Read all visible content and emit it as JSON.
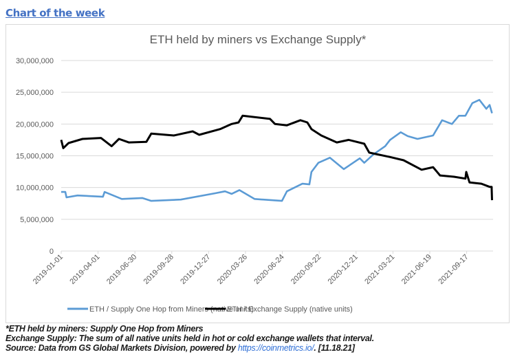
{
  "heading": "Chart of the week",
  "notes": {
    "line1": "*ETH held by miners: Supply One Hop from Miners",
    "line2": "Exchange Supply: The sum of all native units held in hot or cold exchange wallets that interval.",
    "line3_prefix": "Source: Data from GS Global Markets Division, powered by ",
    "line3_link": "https://coinmetrics.io/",
    "line3_suffix": ". [11.18.21]"
  },
  "chart_data": {
    "type": "line",
    "title": "ETH held by miners vs Exchange Supply*",
    "xlabel": "",
    "ylabel": "",
    "ylim": [
      0,
      30000000
    ],
    "xlim": [
      "2019-01-01",
      "2021-11-18"
    ],
    "y_ticks": [
      "0",
      "5,000,000",
      "10,000,000",
      "15,000,000",
      "20,000,000",
      "25,000,000",
      "30,000,000"
    ],
    "x_ticks": [
      "2019-01-01",
      "2019-04-01",
      "2019-06-30",
      "2019-09-28",
      "2019-12-27",
      "2020-03-26",
      "2020-06-24",
      "2020-09-22",
      "2020-12-21",
      "2021-03-21",
      "2021-06-19",
      "2021-09-17"
    ],
    "grid": true,
    "legend_position": "bottom",
    "series": [
      {
        "name": "ETH / Supply One Hop from Miners (native units)",
        "color": "#5b9bd5",
        "points": [
          [
            "2019-01-01",
            9300000
          ],
          [
            "2019-01-11",
            9300000
          ],
          [
            "2019-01-14",
            8450000
          ],
          [
            "2019-02-10",
            8750000
          ],
          [
            "2019-04-13",
            8550000
          ],
          [
            "2019-04-17",
            9300000
          ],
          [
            "2019-05-29",
            8200000
          ],
          [
            "2019-07-18",
            8350000
          ],
          [
            "2019-08-09",
            7900000
          ],
          [
            "2019-10-20",
            8100000
          ],
          [
            "2020-01-12",
            9100000
          ],
          [
            "2020-02-05",
            9400000
          ],
          [
            "2020-02-21",
            9000000
          ],
          [
            "2020-03-11",
            9600000
          ],
          [
            "2020-04-17",
            8200000
          ],
          [
            "2020-06-23",
            7900000
          ],
          [
            "2020-07-05",
            9400000
          ],
          [
            "2020-08-12",
            10600000
          ],
          [
            "2020-08-29",
            10500000
          ],
          [
            "2020-09-03",
            12450000
          ],
          [
            "2020-09-20",
            13900000
          ],
          [
            "2020-10-18",
            14700000
          ],
          [
            "2020-11-21",
            12900000
          ],
          [
            "2020-12-30",
            14600000
          ],
          [
            "2021-01-10",
            13900000
          ],
          [
            "2021-02-01",
            15200000
          ],
          [
            "2021-03-02",
            16500000
          ],
          [
            "2021-03-14",
            17500000
          ],
          [
            "2021-04-09",
            18700000
          ],
          [
            "2021-04-26",
            18100000
          ],
          [
            "2021-05-20",
            17650000
          ],
          [
            "2021-06-27",
            18200000
          ],
          [
            "2021-07-19",
            20600000
          ],
          [
            "2021-08-12",
            20000000
          ],
          [
            "2021-08-29",
            21300000
          ],
          [
            "2021-09-14",
            21300000
          ],
          [
            "2021-10-01",
            23300000
          ],
          [
            "2021-10-18",
            23800000
          ],
          [
            "2021-11-04",
            22400000
          ],
          [
            "2021-11-12",
            23000000
          ],
          [
            "2021-11-18",
            21700000
          ]
        ]
      },
      {
        "name": "ETH / Exchange Supply (native units)",
        "color": "#000000",
        "points": [
          [
            "2019-01-01",
            17500000
          ],
          [
            "2019-01-06",
            16200000
          ],
          [
            "2019-01-19",
            17000000
          ],
          [
            "2019-02-22",
            17650000
          ],
          [
            "2019-04-08",
            17800000
          ],
          [
            "2019-05-04",
            16500000
          ],
          [
            "2019-05-22",
            17650000
          ],
          [
            "2019-06-15",
            17100000
          ],
          [
            "2019-07-28",
            17200000
          ],
          [
            "2019-08-09",
            18500000
          ],
          [
            "2019-10-03",
            18200000
          ],
          [
            "2019-11-18",
            18850000
          ],
          [
            "2019-12-04",
            18300000
          ],
          [
            "2020-01-24",
            19200000
          ],
          [
            "2020-02-21",
            20000000
          ],
          [
            "2020-03-09",
            20250000
          ],
          [
            "2020-03-19",
            21300000
          ],
          [
            "2020-05-25",
            20800000
          ],
          [
            "2020-06-06",
            20000000
          ],
          [
            "2020-07-05",
            19800000
          ],
          [
            "2020-08-07",
            20600000
          ],
          [
            "2020-08-24",
            20250000
          ],
          [
            "2020-09-03",
            19200000
          ],
          [
            "2020-09-27",
            18200000
          ],
          [
            "2020-11-04",
            17100000
          ],
          [
            "2020-12-03",
            17500000
          ],
          [
            "2021-01-10",
            16900000
          ],
          [
            "2021-01-22",
            15500000
          ],
          [
            "2021-03-14",
            14800000
          ],
          [
            "2021-04-16",
            14300000
          ],
          [
            "2021-05-30",
            12800000
          ],
          [
            "2021-06-27",
            13200000
          ],
          [
            "2021-07-14",
            11900000
          ],
          [
            "2021-08-17",
            11700000
          ],
          [
            "2021-09-14",
            11400000
          ],
          [
            "2021-09-16",
            12450000
          ],
          [
            "2021-09-24",
            10800000
          ],
          [
            "2021-10-23",
            10600000
          ],
          [
            "2021-11-12",
            10100000
          ],
          [
            "2021-11-17",
            10100000
          ],
          [
            "2021-11-18",
            8000000
          ]
        ]
      }
    ]
  }
}
